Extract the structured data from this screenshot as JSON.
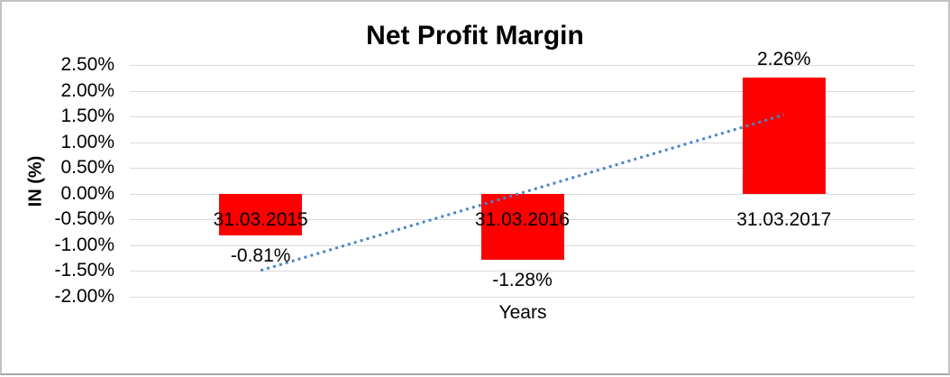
{
  "frame": {
    "background": "#ffffff",
    "border_color": "#c2c2c2"
  },
  "chart_data": {
    "type": "bar",
    "title": "Net Profit Margin",
    "xlabel": "Years",
    "ylabel": "IN (%)",
    "categories": [
      "31.03.2015",
      "31.03.2016",
      "31.03.2017"
    ],
    "series": [
      {
        "name": "Net Profit Margin",
        "values": [
          -0.81,
          -1.28,
          2.26
        ]
      }
    ],
    "value_labels": [
      "-0.81%",
      "-1.28%",
      "2.26%"
    ],
    "ylim": [
      -2.0,
      2.5
    ],
    "yticks": [
      2.5,
      2.0,
      1.5,
      1.0,
      0.5,
      0.0,
      -0.5,
      -1.0,
      -1.5,
      -2.0
    ],
    "ytick_labels": [
      "2.50%",
      "2.00%",
      "1.50%",
      "1.00%",
      "0.50%",
      "0.00%",
      "-0.50%",
      "-1.00%",
      "-1.50%",
      "-2.00%"
    ],
    "grid": true,
    "legend": false,
    "bar_color": "#FF0000",
    "gridline_color": "#D9D9D9",
    "text_color": "#000000",
    "trendline": {
      "style": "dotted",
      "color": "#4A86C8",
      "from": {
        "category_index": 0,
        "value": -1.49
      },
      "to": {
        "category_index": 2,
        "value": 1.53
      }
    }
  }
}
